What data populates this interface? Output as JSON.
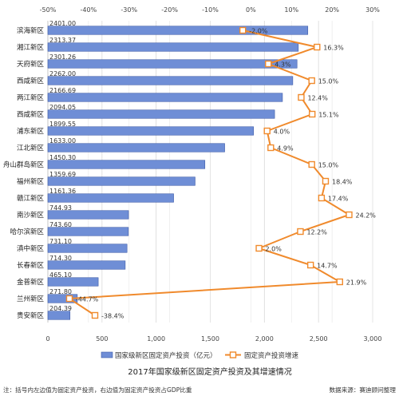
{
  "chart_data": {
    "type": "bar",
    "title": "2017年国家级新区固定资产投资及其增速情况",
    "note": "注：括号内左边值为固定资产投资，右边值为固定资产投资占GDP比重",
    "source": "数据来源：赛迪顾问整理",
    "categories": [
      "滨海新区",
      "湘江新区",
      "天府新区",
      "西咸新区",
      "两江新区",
      "西咸新区",
      "浦东新区",
      "江北新区",
      "舟山群岛新区",
      "福州新区",
      "赣江新区",
      "南沙新区",
      "哈尔滨新区",
      "滇中新区",
      "长春新区",
      "金普新区",
      "兰州新区",
      "贵安新区"
    ],
    "series": [
      {
        "name": "国家级新区固定资产投资（亿元）",
        "axis": "bottom",
        "color": "#6f8ed6",
        "values": [
          2401.0,
          2313.37,
          2301.26,
          2262.0,
          2166.69,
          2094.05,
          1899.55,
          1633.0,
          1450.3,
          1359.69,
          1161.36,
          744.93,
          743.6,
          731.1,
          714.3,
          465.1,
          271.8,
          204.39
        ],
        "labels": [
          "2401.00",
          "2313.37",
          "2301.26",
          "2262.00",
          "2166.69",
          "2094.05",
          "1899.55",
          "1633.00",
          "1450.30",
          "1359.69",
          "1161.36",
          "744.93",
          "743.60",
          "731.10",
          "714.30",
          "465.10",
          "271.80",
          "204.39"
        ]
      },
      {
        "name": "固定资产投资增速",
        "axis": "top",
        "color": "#f08a2c",
        "values": [
          -2.0,
          16.3,
          4.3,
          15.0,
          12.4,
          15.1,
          4.0,
          4.9,
          15.0,
          18.4,
          17.4,
          24.2,
          12.2,
          2.0,
          14.7,
          21.9,
          -44.7,
          -38.4
        ],
        "labels": [
          "-2.0%",
          "16.3%",
          "4.3%",
          "15.0%",
          "12.4%",
          "15.1%",
          "4.0%",
          "4.9%",
          "15.0%",
          "18.4%",
          "17.4%",
          "24.2%",
          "12.2%",
          "2.0%",
          "14.7%",
          "21.9%",
          "-44.7%",
          "-38.4%"
        ]
      }
    ],
    "xlim_bottom": [
      0,
      3000
    ],
    "xticks_bottom": [
      "0",
      "500",
      "1,000",
      "1,500",
      "2,000",
      "2,500",
      "3,000"
    ],
    "xlim_top": [
      -50,
      30
    ],
    "xticks_top": [
      "-50%",
      "-40%",
      "-30%",
      "-20%",
      "-10%",
      "0%",
      "10%",
      "20%",
      "30%"
    ],
    "grid": true,
    "legend_position": "bottom"
  }
}
